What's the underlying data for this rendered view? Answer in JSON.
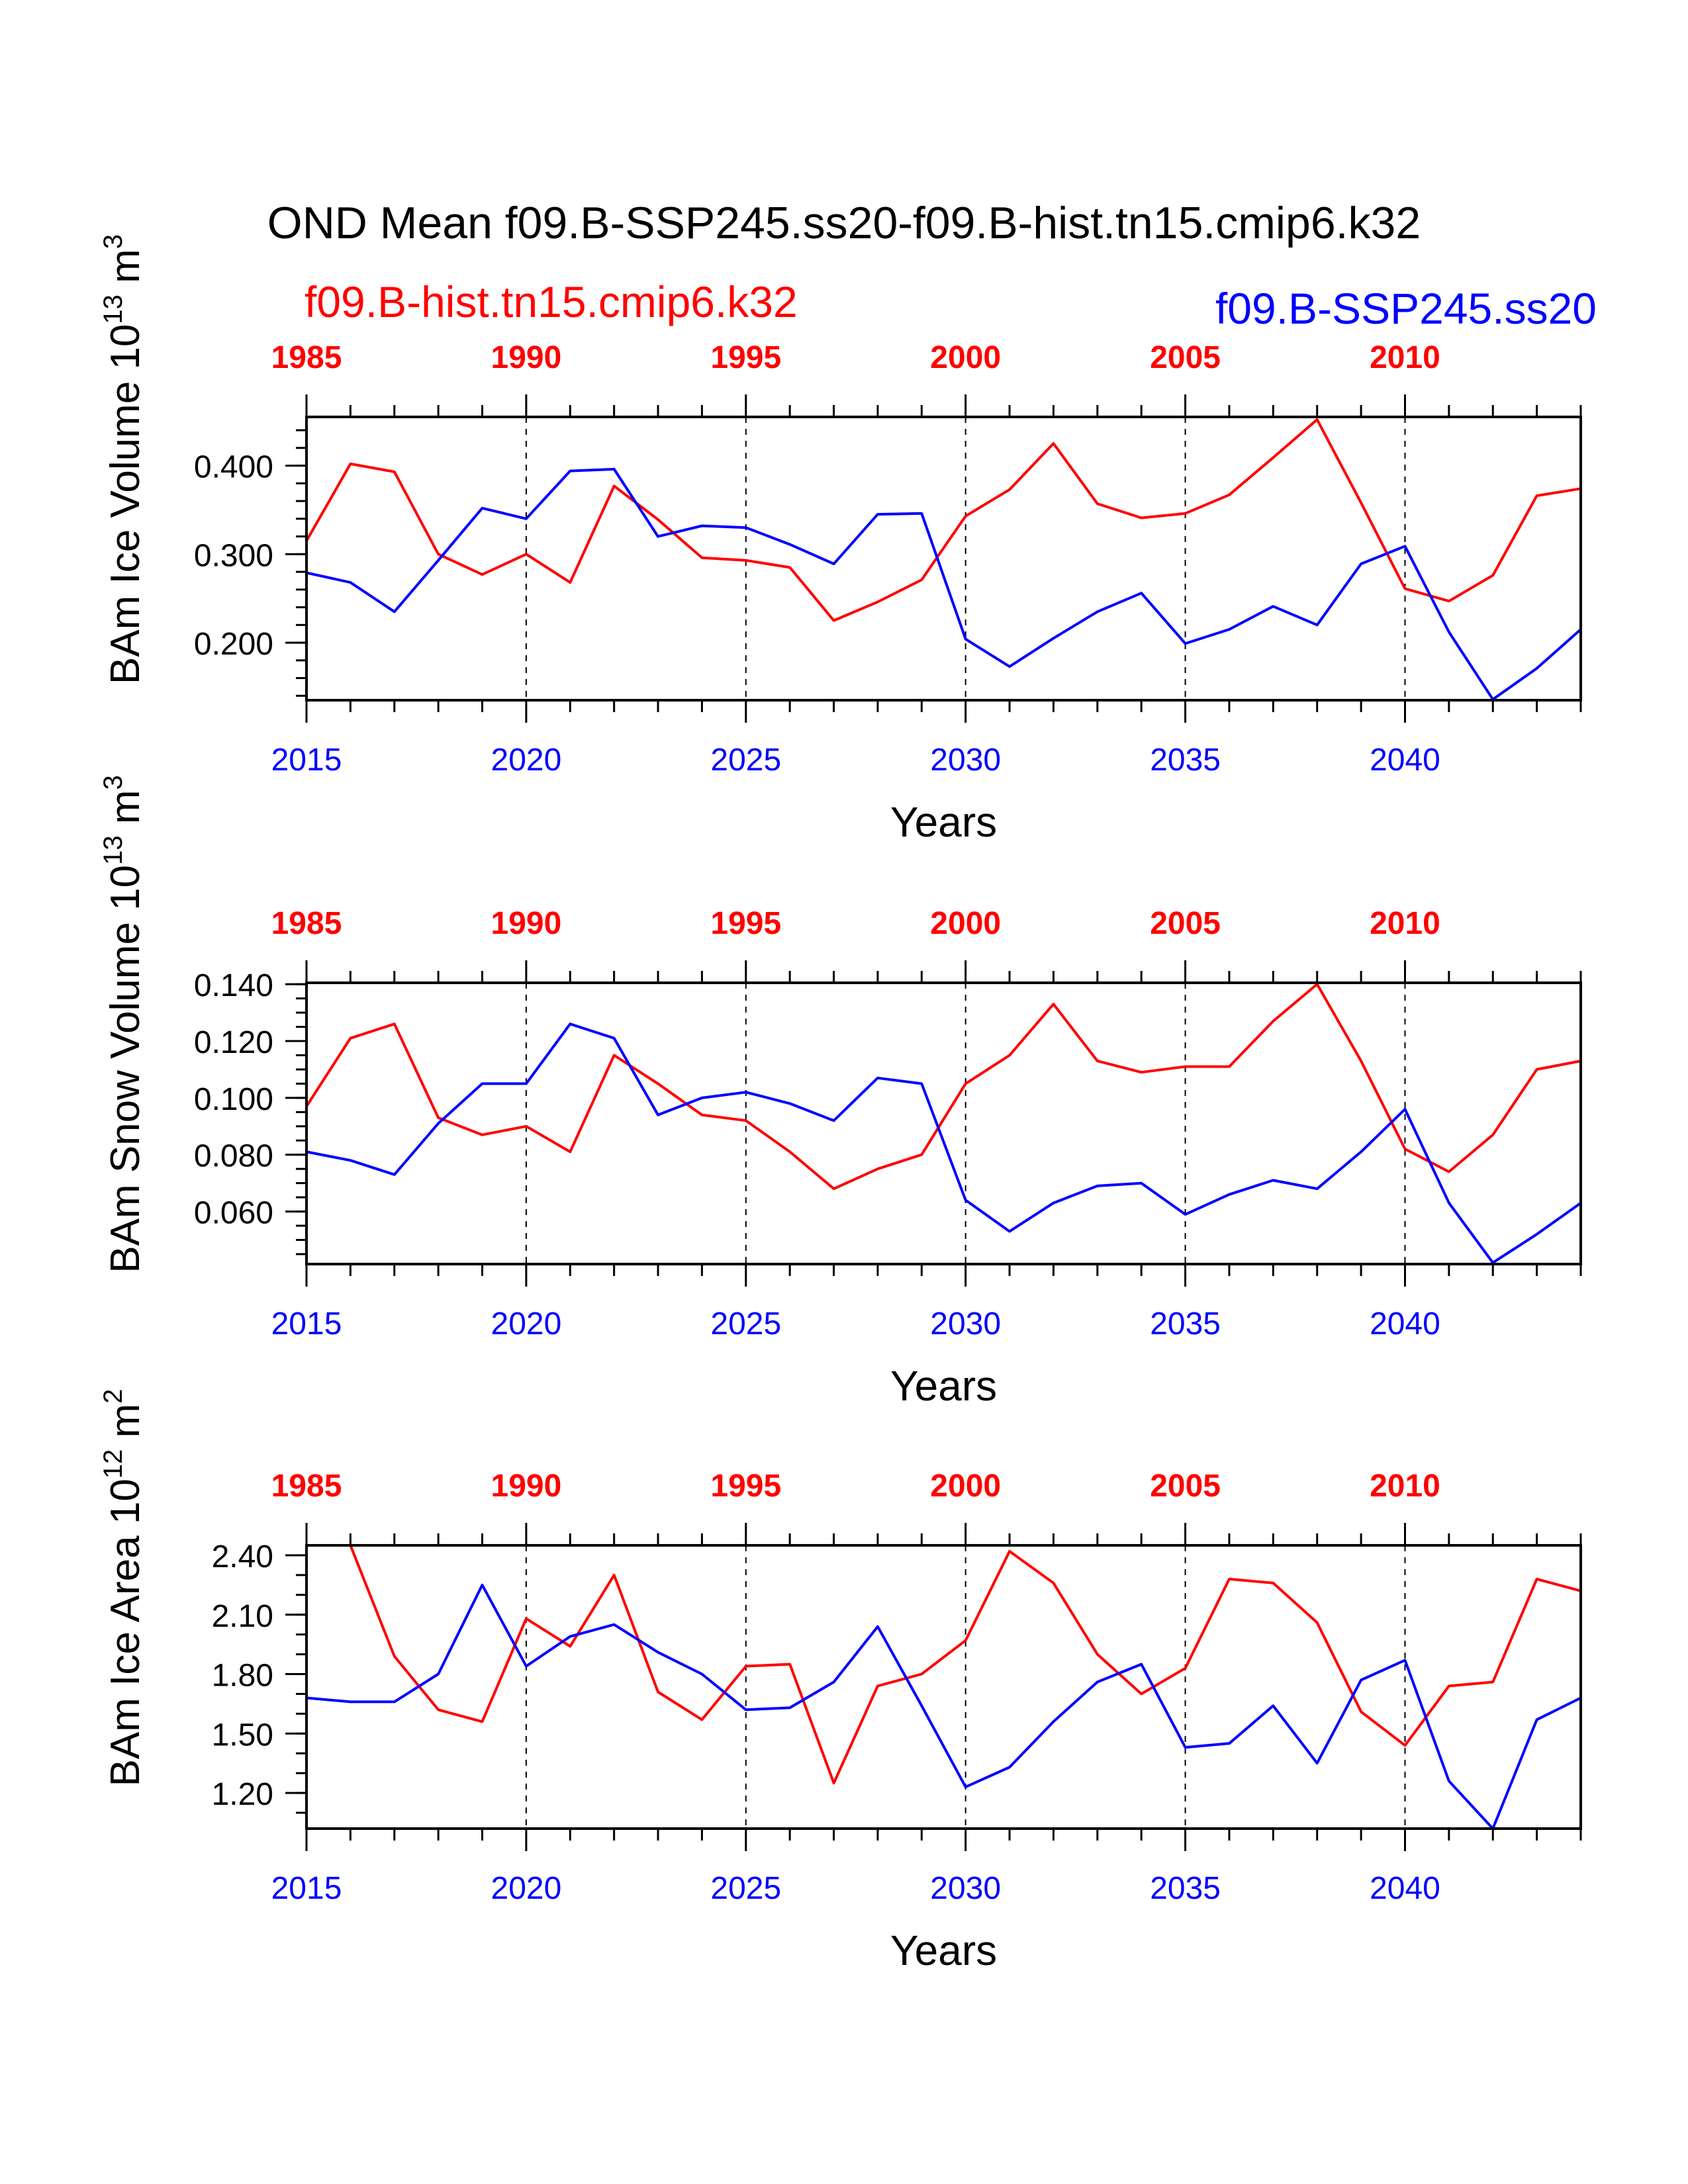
{
  "title": "OND Mean f09.B-SSP245.ss20-f09.B-hist.tn15.cmip6.k32",
  "legend": {
    "hist": "f09.B-hist.tn15.cmip6.k32",
    "ssp": "f09.B-SSP245.ss20"
  },
  "colors": {
    "hist": "#ff0000",
    "ssp": "#0000ff",
    "axis": "#000000"
  },
  "chart_data": [
    {
      "type": "line",
      "ylabel_main": "BAm Ice Volume 10",
      "ylabel_exp": "13",
      "ylabel_unit": " m",
      "ylabel_unit_exp": "3",
      "xlabel": "Years",
      "xlim": [
        2015,
        2044
      ],
      "ylim": [
        0.135,
        0.455
      ],
      "yticks": [
        0.2,
        0.3,
        0.4
      ],
      "ytick_labels": [
        "0.200",
        "0.300",
        "0.400"
      ],
      "yminor": 0.02,
      "xticks_bottom": [
        2015,
        2020,
        2025,
        2030,
        2035,
        2040
      ],
      "xtick_labels_bottom": [
        "2015",
        "2020",
        "2025",
        "2030",
        "2035",
        "2040"
      ],
      "xtick_labels_top": [
        "1985",
        "1990",
        "1995",
        "2000",
        "2005",
        "2010"
      ],
      "series": [
        {
          "key": "hist",
          "x": [
            2015,
            2016,
            2017,
            2018,
            2019,
            2020,
            2021,
            2022,
            2023,
            2024,
            2025,
            2026,
            2027,
            2028,
            2029,
            2030,
            2031,
            2032,
            2033,
            2034,
            2035,
            2036,
            2037,
            2038,
            2039,
            2040,
            2041,
            2042,
            2043,
            2044
          ],
          "y": [
            0.315,
            0.402,
            0.393,
            0.3,
            0.277,
            0.3,
            0.268,
            0.377,
            0.339,
            0.296,
            0.293,
            0.285,
            0.225,
            0.246,
            0.271,
            0.343,
            0.373,
            0.425,
            0.357,
            0.341,
            0.346,
            0.367,
            0.409,
            0.452,
            0.358,
            0.261,
            0.247,
            0.276,
            0.366,
            0.374
          ]
        },
        {
          "key": "ssp",
          "x": [
            2015,
            2016,
            2017,
            2018,
            2019,
            2020,
            2021,
            2022,
            2023,
            2024,
            2025,
            2026,
            2027,
            2028,
            2029,
            2030,
            2031,
            2032,
            2033,
            2034,
            2035,
            2036,
            2037,
            2038,
            2039,
            2040,
            2041,
            2042,
            2043,
            2044
          ],
          "y": [
            0.279,
            0.268,
            0.235,
            0.293,
            0.352,
            0.34,
            0.394,
            0.396,
            0.32,
            0.332,
            0.33,
            0.311,
            0.289,
            0.345,
            0.346,
            0.204,
            0.173,
            0.205,
            0.235,
            0.256,
            0.199,
            0.215,
            0.241,
            0.22,
            0.289,
            0.309,
            0.212,
            0.136,
            0.171,
            0.215
          ]
        }
      ]
    },
    {
      "type": "line",
      "ylabel_main": "BAm Snow Volume 10",
      "ylabel_exp": "13",
      "ylabel_unit": " m",
      "ylabel_unit_exp": "3",
      "xlabel": "Years",
      "xlim": [
        2015,
        2044
      ],
      "ylim": [
        0.0415,
        0.1405
      ],
      "yticks": [
        0.06,
        0.08,
        0.1,
        0.12,
        0.14
      ],
      "ytick_labels": [
        "0.060",
        "0.080",
        "0.100",
        "0.120",
        "0.140"
      ],
      "yminor": 0.005,
      "xticks_bottom": [
        2015,
        2020,
        2025,
        2030,
        2035,
        2040
      ],
      "xtick_labels_bottom": [
        "2015",
        "2020",
        "2025",
        "2030",
        "2035",
        "2040"
      ],
      "xtick_labels_top": [
        "1985",
        "1990",
        "1995",
        "2000",
        "2005",
        "2010"
      ],
      "series": [
        {
          "key": "hist",
          "x": [
            2015,
            2016,
            2017,
            2018,
            2019,
            2020,
            2021,
            2022,
            2023,
            2024,
            2025,
            2026,
            2027,
            2028,
            2029,
            2030,
            2031,
            2032,
            2033,
            2034,
            2035,
            2036,
            2037,
            2038,
            2039,
            2040,
            2041,
            2042,
            2043,
            2044
          ],
          "y": [
            0.097,
            0.121,
            0.126,
            0.093,
            0.087,
            0.09,
            0.081,
            0.115,
            0.105,
            0.094,
            0.092,
            0.081,
            0.068,
            0.075,
            0.08,
            0.105,
            0.115,
            0.133,
            0.113,
            0.109,
            0.111,
            0.111,
            0.127,
            0.14,
            0.113,
            0.082,
            0.074,
            0.087,
            0.11,
            0.113
          ]
        },
        {
          "key": "ssp",
          "x": [
            2015,
            2016,
            2017,
            2018,
            2019,
            2020,
            2021,
            2022,
            2023,
            2024,
            2025,
            2026,
            2027,
            2028,
            2029,
            2030,
            2031,
            2032,
            2033,
            2034,
            2035,
            2036,
            2037,
            2038,
            2039,
            2040,
            2041,
            2042,
            2043,
            2044
          ],
          "y": [
            0.081,
            0.078,
            0.073,
            0.091,
            0.105,
            0.105,
            0.126,
            0.121,
            0.094,
            0.1,
            0.102,
            0.098,
            0.092,
            0.107,
            0.105,
            0.064,
            0.053,
            0.063,
            0.069,
            0.07,
            0.059,
            0.066,
            0.071,
            0.068,
            0.081,
            0.096,
            0.063,
            0.042,
            0.052,
            0.063
          ]
        }
      ]
    },
    {
      "type": "line",
      "ylabel_main": "BAm Ice Area 10",
      "ylabel_exp": "12",
      "ylabel_unit": " m",
      "ylabel_unit_exp": "2",
      "xlabel": "Years",
      "xlim": [
        2015,
        2044
      ],
      "ylim": [
        1.02,
        2.45
      ],
      "yticks": [
        1.2,
        1.5,
        1.8,
        2.1,
        2.4
      ],
      "ytick_labels": [
        "1.20",
        "1.50",
        "1.80",
        "2.10",
        "2.40"
      ],
      "yminor": 0.1,
      "xticks_bottom": [
        2015,
        2020,
        2025,
        2030,
        2035,
        2040
      ],
      "xtick_labels_bottom": [
        "2015",
        "2020",
        "2025",
        "2030",
        "2035",
        "2040"
      ],
      "xtick_labels_top": [
        "1985",
        "1990",
        "1995",
        "2000",
        "2005",
        "2010"
      ],
      "series": [
        {
          "key": "hist",
          "x": [
            2015,
            2016,
            2017,
            2018,
            2019,
            2020,
            2021,
            2022,
            2023,
            2024,
            2025,
            2026,
            2027,
            2028,
            2029,
            2030,
            2031,
            2032,
            2033,
            2034,
            2035,
            2036,
            2037,
            2038,
            2039,
            2040,
            2041,
            2042,
            2043,
            2044
          ],
          "y": [
            2.45,
            2.45,
            1.89,
            1.62,
            1.56,
            2.08,
            1.94,
            2.3,
            1.71,
            1.57,
            1.84,
            1.85,
            1.25,
            1.74,
            1.8,
            1.97,
            2.42,
            2.26,
            1.9,
            1.7,
            1.83,
            2.28,
            2.26,
            2.06,
            1.61,
            1.44,
            1.74,
            1.76,
            2.28,
            2.22
          ]
        },
        {
          "key": "ssp",
          "x": [
            2015,
            2016,
            2017,
            2018,
            2019,
            2020,
            2021,
            2022,
            2023,
            2024,
            2025,
            2026,
            2027,
            2028,
            2029,
            2030,
            2031,
            2032,
            2033,
            2034,
            2035,
            2036,
            2037,
            2038,
            2039,
            2040,
            2041,
            2042,
            2043,
            2044
          ],
          "y": [
            1.68,
            1.66,
            1.66,
            1.8,
            2.25,
            1.84,
            1.99,
            2.05,
            1.91,
            1.8,
            1.62,
            1.63,
            1.76,
            2.04,
            1.64,
            1.23,
            1.33,
            1.56,
            1.76,
            1.85,
            1.43,
            1.45,
            1.64,
            1.35,
            1.77,
            1.87,
            1.26,
            1.02,
            1.57,
            1.68
          ]
        }
      ]
    }
  ]
}
